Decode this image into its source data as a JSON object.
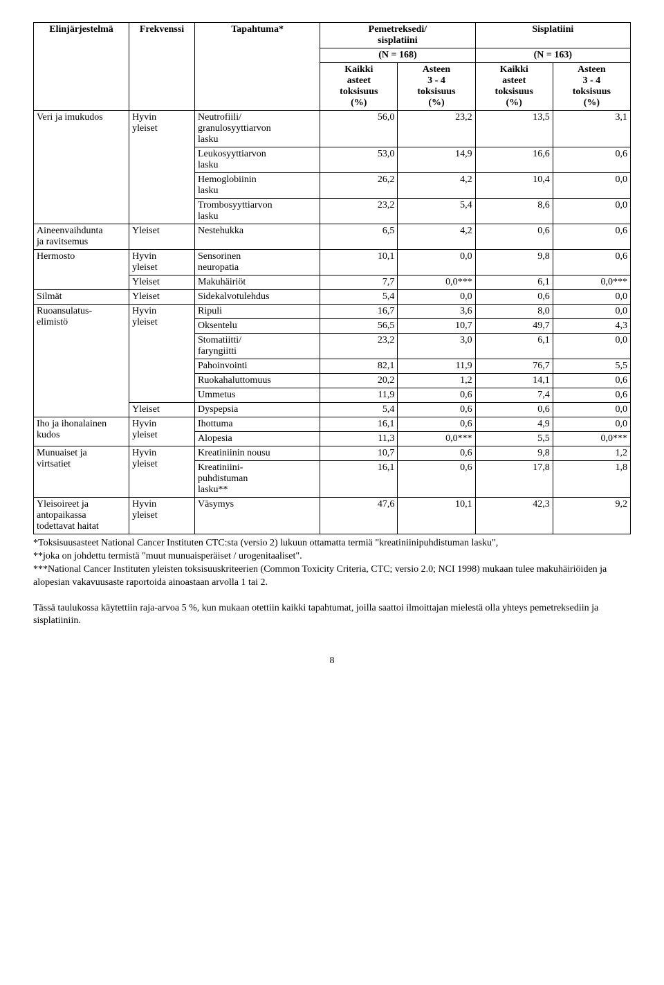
{
  "table": {
    "columns": [
      "c1",
      "c2",
      "c3",
      "c4",
      "c5",
      "c6",
      "c7"
    ],
    "header": {
      "elin": "Elinjärjestelmä",
      "frekv": "Frekvenssi",
      "tapahtuma": "Tapahtuma*",
      "group_a": "Pemetreksedi/\nsisplatiini",
      "group_b": "Sisplatiini",
      "n_a": "(N = 168)",
      "n_b": "(N = 163)",
      "kaikki": "Kaikki\nasteet\ntoksisuus\n(%)",
      "asteen": "Asteen\n3 - 4\ntoksisuus\n(%)"
    },
    "sections": [
      {
        "system": "Veri ja imukudos",
        "freq": "Hyvin\nyleiset",
        "rows": [
          {
            "event": "Neutrofiili/\ngranulosyyttiarvon\nlasku",
            "a1": "56,0",
            "a2": "23,2",
            "b1": "13,5",
            "b2": "3,1"
          },
          {
            "event": "Leukosyyttiarvon\nlasku",
            "a1": "53,0",
            "a2": "14,9",
            "b1": "16,6",
            "b2": "0,6"
          },
          {
            "event": "Hemoglobiinin\nlasku",
            "a1": "26,2",
            "a2": "4,2",
            "b1": "10,4",
            "b2": "0,0"
          },
          {
            "event": "Trombosyyttiarvon\nlasku",
            "a1": "23,2",
            "a2": "5,4",
            "b1": "8,6",
            "b2": "0,0"
          }
        ]
      },
      {
        "system": "Aineenvaihdunta\nja ravitsemus",
        "freq": "Yleiset",
        "rows": [
          {
            "event": "Nestehukka",
            "a1": "6,5",
            "a2": "4,2",
            "b1": "0,6",
            "b2": "0,6"
          }
        ]
      },
      {
        "system": "Hermosto",
        "freqRows": [
          {
            "freq": "Hyvin\nyleiset",
            "rows": [
              {
                "event": "Sensorinen\nneuropatia",
                "a1": "10,1",
                "a2": "0,0",
                "b1": "9,8",
                "b2": "0,6"
              }
            ]
          },
          {
            "freq": "Yleiset",
            "rows": [
              {
                "event": "Makuhäiriöt",
                "a1": "7,7",
                "a2": "0,0***",
                "b1": "6,1",
                "b2": "0,0***"
              }
            ]
          }
        ]
      },
      {
        "system": "Silmät",
        "freq": "Yleiset",
        "rows": [
          {
            "event": "Sidekalvotulehdus",
            "a1": "5,4",
            "a2": "0,0",
            "b1": "0,6",
            "b2": "0,0"
          }
        ]
      },
      {
        "system": "Ruoansulatus-\nelimistö",
        "freqRows": [
          {
            "freq": "Hyvin\nyleiset",
            "rows": [
              {
                "event": "Ripuli",
                "a1": "16,7",
                "a2": "3,6",
                "b1": "8,0",
                "b2": "0,0"
              },
              {
                "event": "Oksentelu",
                "a1": "56,5",
                "a2": "10,7",
                "b1": "49,7",
                "b2": "4,3"
              },
              {
                "event": "Stomatiitti/\nfaryngiitti",
                "a1": "23,2",
                "a2": "3,0",
                "b1": "6,1",
                "b2": "0,0"
              },
              {
                "event": "Pahoinvointi",
                "a1": "82,1",
                "a2": "11,9",
                "b1": "76,7",
                "b2": "5,5"
              },
              {
                "event": "Ruokahaluttomuus",
                "a1": "20,2",
                "a2": "1,2",
                "b1": "14,1",
                "b2": "0,6"
              },
              {
                "event": "Ummetus",
                "a1": "11,9",
                "a2": "0,6",
                "b1": "7,4",
                "b2": "0,6"
              }
            ]
          },
          {
            "freq": "Yleiset",
            "rows": [
              {
                "event": "Dyspepsia",
                "a1": "5,4",
                "a2": "0,6",
                "b1": "0,6",
                "b2": "0,0"
              }
            ]
          }
        ]
      },
      {
        "system": "Iho ja ihonalainen\nkudos",
        "freq": "Hyvin\nyleiset",
        "rows": [
          {
            "event": "Ihottuma",
            "a1": "16,1",
            "a2": "0,6",
            "b1": "4,9",
            "b2": "0,0"
          },
          {
            "event": "Alopesia",
            "a1": "11,3",
            "a2": "0,0***",
            "b1": "5,5",
            "b2": "0,0***"
          }
        ]
      },
      {
        "system": "Munuaiset ja\nvirtsatiet",
        "freq": "Hyvin\nyleiset",
        "rows": [
          {
            "event": "Kreatiniinin nousu",
            "a1": "10,7",
            "a2": "0,6",
            "b1": "9,8",
            "b2": "1,2"
          },
          {
            "event": "Kreatiniini-\npuhdistuman\nlasku**",
            "a1": "16,1",
            "a2": "0,6",
            "b1": "17,8",
            "b2": "1,8"
          }
        ]
      },
      {
        "system": "Yleisoireet ja\nantopaikassa\ntodettavat haitat",
        "freq": "Hyvin\nyleiset",
        "rows": [
          {
            "event": "Väsymys",
            "a1": "47,6",
            "a2": "10,1",
            "b1": "42,3",
            "b2": "9,2"
          }
        ]
      }
    ]
  },
  "footnotes": [
    "*Toksisuusasteet National Cancer Instituten CTC:sta (versio 2) lukuun ottamatta termiä \"kreatiniinipuhdistuman lasku\",",
    "**joka on johdettu termistä \"muut munuaisperäiset / urogenitaaliset\".",
    "***National Cancer Instituten yleisten toksisuuskriteerien (Common Toxicity Criteria, CTC; versio 2.0; NCI 1998) mukaan tulee makuhäiriöiden ja alopesian vakavuusaste raportoida ainoastaan arvolla 1 tai 2."
  ],
  "paragraph": "Tässä taulukossa käytettiin raja-arvoa 5 %, kun mukaan otettiin kaikki tapahtumat, joilla saattoi ilmoittajan mielestä olla yhteys pemetreksediin ja sisplatiiniin.",
  "page_number": "8"
}
